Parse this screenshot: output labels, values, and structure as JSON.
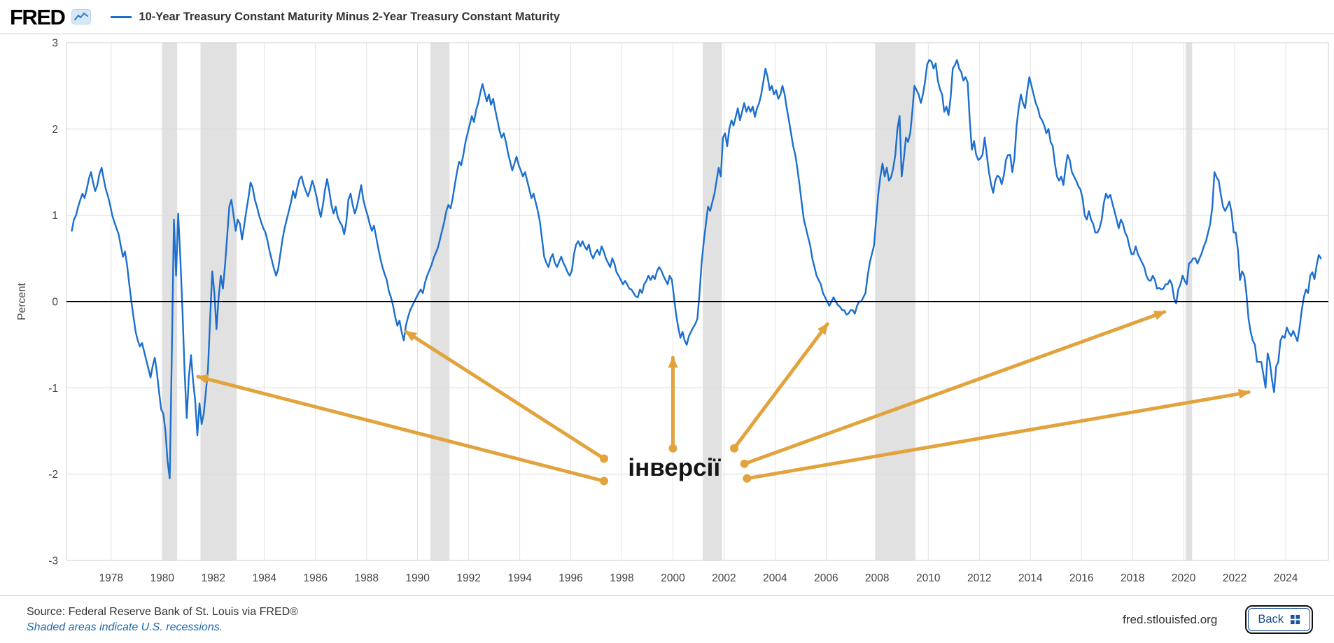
{
  "header": {
    "brand": "FRED",
    "series_title": "10-Year Treasury Constant Maturity Minus 2-Year Treasury Constant Maturity"
  },
  "chart_data": {
    "type": "line",
    "title": "10-Year Treasury Constant Maturity Minus 2-Year Treasury Constant Maturity",
    "ylabel": "Percent",
    "ylim": [
      -3,
      3
    ],
    "yticks": [
      3,
      2,
      1,
      0,
      -1,
      -2,
      -3
    ],
    "xlim": [
      1976.25,
      2025.67
    ],
    "xticks": [
      1978,
      1980,
      1982,
      1984,
      1986,
      1988,
      1990,
      1992,
      1994,
      1996,
      1998,
      2000,
      2002,
      2004,
      2006,
      2008,
      2010,
      2012,
      2014,
      2016,
      2018,
      2020,
      2022,
      2024
    ],
    "line_color": "#1c6fce",
    "recession_color": "#e1e1e1",
    "grid": true,
    "zero_line": true,
    "recessions": [
      [
        1980.0,
        1980.583
      ],
      [
        1981.5,
        1982.917
      ],
      [
        1990.5,
        1991.25
      ],
      [
        2001.167,
        2001.917
      ],
      [
        2007.917,
        2009.5
      ],
      [
        2020.083,
        2020.333
      ]
    ],
    "series": [
      {
        "name": "10-Year Treasury Constant Maturity Minus 2-Year Treasury Constant Maturity",
        "units": "percent",
        "start": "1976-06",
        "frequency": "monthly",
        "values": [
          0.82,
          0.95,
          1.0,
          1.1,
          1.18,
          1.25,
          1.2,
          1.3,
          1.42,
          1.5,
          1.38,
          1.28,
          1.35,
          1.48,
          1.55,
          1.42,
          1.3,
          1.22,
          1.12,
          1.0,
          0.92,
          0.85,
          0.78,
          0.65,
          0.52,
          0.58,
          0.42,
          0.2,
          0.0,
          -0.18,
          -0.35,
          -0.45,
          -0.52,
          -0.48,
          -0.58,
          -0.68,
          -0.78,
          -0.88,
          -0.75,
          -0.65,
          -0.82,
          -1.05,
          -1.25,
          -1.3,
          -1.5,
          -1.85,
          -2.05,
          -0.6,
          0.95,
          0.3,
          1.02,
          0.5,
          -0.1,
          -0.8,
          -1.35,
          -0.88,
          -0.62,
          -0.92,
          -1.15,
          -1.55,
          -1.18,
          -1.42,
          -1.3,
          -1.05,
          -0.78,
          -0.2,
          0.35,
          0.1,
          -0.32,
          0.05,
          0.3,
          0.15,
          0.42,
          0.75,
          1.1,
          1.18,
          1.0,
          0.82,
          0.95,
          0.9,
          0.72,
          0.88,
          1.05,
          1.2,
          1.38,
          1.32,
          1.18,
          1.1,
          1.0,
          0.92,
          0.85,
          0.8,
          0.7,
          0.58,
          0.48,
          0.38,
          0.3,
          0.38,
          0.55,
          0.72,
          0.85,
          0.95,
          1.05,
          1.15,
          1.28,
          1.2,
          1.32,
          1.42,
          1.45,
          1.35,
          1.28,
          1.22,
          1.3,
          1.4,
          1.32,
          1.22,
          1.08,
          0.98,
          1.12,
          1.3,
          1.42,
          1.28,
          1.12,
          1.02,
          1.1,
          0.98,
          0.92,
          0.88,
          0.78,
          0.92,
          1.18,
          1.25,
          1.12,
          1.02,
          1.1,
          1.22,
          1.35,
          1.18,
          1.08,
          1.0,
          0.9,
          0.82,
          0.88,
          0.75,
          0.62,
          0.5,
          0.4,
          0.32,
          0.25,
          0.12,
          0.05,
          -0.05,
          -0.18,
          -0.28,
          -0.22,
          -0.35,
          -0.45,
          -0.28,
          -0.18,
          -0.1,
          -0.05,
          0.0,
          0.05,
          0.1,
          0.14,
          0.1,
          0.22,
          0.3,
          0.36,
          0.42,
          0.5,
          0.56,
          0.62,
          0.72,
          0.82,
          0.92,
          1.05,
          1.12,
          1.08,
          1.2,
          1.35,
          1.5,
          1.62,
          1.58,
          1.7,
          1.85,
          1.95,
          2.05,
          2.15,
          2.08,
          2.22,
          2.3,
          2.42,
          2.52,
          2.42,
          2.32,
          2.4,
          2.28,
          2.35,
          2.22,
          2.1,
          1.98,
          1.9,
          1.95,
          1.85,
          1.72,
          1.62,
          1.52,
          1.6,
          1.68,
          1.58,
          1.52,
          1.45,
          1.5,
          1.4,
          1.3,
          1.2,
          1.25,
          1.15,
          1.05,
          0.92,
          0.72,
          0.52,
          0.45,
          0.4,
          0.5,
          0.55,
          0.45,
          0.4,
          0.46,
          0.52,
          0.45,
          0.4,
          0.34,
          0.3,
          0.36,
          0.55,
          0.66,
          0.7,
          0.64,
          0.7,
          0.64,
          0.6,
          0.66,
          0.55,
          0.5,
          0.56,
          0.6,
          0.54,
          0.64,
          0.58,
          0.5,
          0.45,
          0.4,
          0.5,
          0.44,
          0.34,
          0.3,
          0.25,
          0.2,
          0.24,
          0.2,
          0.15,
          0.14,
          0.1,
          0.06,
          0.05,
          0.14,
          0.1,
          0.2,
          0.24,
          0.3,
          0.25,
          0.3,
          0.26,
          0.35,
          0.4,
          0.36,
          0.3,
          0.25,
          0.2,
          0.3,
          0.25,
          0.05,
          -0.15,
          -0.3,
          -0.42,
          -0.35,
          -0.45,
          -0.5,
          -0.4,
          -0.35,
          -0.3,
          -0.26,
          -0.2,
          0.1,
          0.45,
          0.7,
          0.9,
          1.1,
          1.05,
          1.15,
          1.25,
          1.4,
          1.55,
          1.45,
          1.9,
          1.95,
          1.8,
          2.0,
          2.1,
          2.04,
          2.14,
          2.24,
          2.1,
          2.2,
          2.3,
          2.2,
          2.26,
          2.2,
          2.26,
          2.14,
          2.24,
          2.3,
          2.4,
          2.55,
          2.7,
          2.6,
          2.45,
          2.5,
          2.4,
          2.45,
          2.35,
          2.4,
          2.5,
          2.4,
          2.24,
          2.1,
          1.95,
          1.8,
          1.7,
          1.54,
          1.35,
          1.15,
          0.95,
          0.85,
          0.75,
          0.65,
          0.5,
          0.4,
          0.3,
          0.25,
          0.2,
          0.1,
          0.05,
          0.0,
          -0.05,
          0.0,
          0.05,
          0.0,
          -0.04,
          -0.06,
          -0.1,
          -0.1,
          -0.15,
          -0.14,
          -0.1,
          -0.1,
          -0.14,
          -0.05,
          0.0,
          0.0,
          0.05,
          0.1,
          0.3,
          0.45,
          0.55,
          0.65,
          0.95,
          1.25,
          1.45,
          1.6,
          1.45,
          1.55,
          1.4,
          1.44,
          1.54,
          1.7,
          2.0,
          2.15,
          1.45,
          1.65,
          1.9,
          1.85,
          1.95,
          2.2,
          2.5,
          2.45,
          2.4,
          2.3,
          2.4,
          2.55,
          2.75,
          2.8,
          2.78,
          2.7,
          2.76,
          2.56,
          2.46,
          2.4,
          2.2,
          2.26,
          2.16,
          2.36,
          2.7,
          2.74,
          2.8,
          2.7,
          2.66,
          2.56,
          2.6,
          2.54,
          2.1,
          1.76,
          1.86,
          1.7,
          1.64,
          1.66,
          1.7,
          1.9,
          1.7,
          1.5,
          1.36,
          1.26,
          1.4,
          1.46,
          1.44,
          1.36,
          1.46,
          1.64,
          1.7,
          1.7,
          1.5,
          1.66,
          2.04,
          2.24,
          2.4,
          2.3,
          2.24,
          2.44,
          2.6,
          2.5,
          2.4,
          2.3,
          2.24,
          2.14,
          2.1,
          2.04,
          1.95,
          2.0,
          1.85,
          1.8,
          1.6,
          1.45,
          1.4,
          1.45,
          1.35,
          1.55,
          1.7,
          1.64,
          1.5,
          1.45,
          1.4,
          1.34,
          1.3,
          1.2,
          1.0,
          0.95,
          1.05,
          0.95,
          0.9,
          0.8,
          0.8,
          0.85,
          0.95,
          1.14,
          1.25,
          1.2,
          1.24,
          1.14,
          1.05,
          0.95,
          0.85,
          0.95,
          0.9,
          0.8,
          0.75,
          0.64,
          0.55,
          0.55,
          0.64,
          0.55,
          0.5,
          0.45,
          0.4,
          0.3,
          0.25,
          0.24,
          0.3,
          0.25,
          0.15,
          0.16,
          0.14,
          0.15,
          0.2,
          0.2,
          0.25,
          0.2,
          0.04,
          -0.02,
          0.14,
          0.2,
          0.3,
          0.24,
          0.2,
          0.44,
          0.46,
          0.5,
          0.5,
          0.44,
          0.5,
          0.56,
          0.64,
          0.7,
          0.8,
          0.9,
          1.1,
          1.5,
          1.44,
          1.4,
          1.24,
          1.1,
          1.05,
          1.1,
          1.16,
          1.04,
          0.8,
          0.8,
          0.6,
          0.25,
          0.35,
          0.3,
          0.1,
          -0.2,
          -0.35,
          -0.45,
          -0.5,
          -0.7,
          -0.7,
          -0.7,
          -0.85,
          -1.0,
          -0.6,
          -0.7,
          -0.9,
          -1.05,
          -0.75,
          -0.7,
          -0.45,
          -0.4,
          -0.42,
          -0.3,
          -0.36,
          -0.4,
          -0.34,
          -0.4,
          -0.46,
          -0.3,
          -0.1,
          0.05,
          0.14,
          0.1,
          0.3,
          0.34,
          0.26,
          0.42,
          0.54,
          0.5
        ]
      }
    ],
    "annotation": {
      "label": "інверсії",
      "color": "#e2a33d",
      "label_xy": [
        2000.05,
        -2.02
      ],
      "arrows": [
        {
          "from": [
            1997.3,
            -2.08
          ],
          "to": [
            1981.4,
            -0.87
          ]
        },
        {
          "from": [
            1997.3,
            -1.82
          ],
          "to": [
            1989.55,
            -0.35
          ]
        },
        {
          "from": [
            2000.0,
            -1.7
          ],
          "to": [
            2000.0,
            -0.65
          ]
        },
        {
          "from": [
            2002.4,
            -1.7
          ],
          "to": [
            2006.05,
            -0.26
          ]
        },
        {
          "from": [
            2002.8,
            -1.88
          ],
          "to": [
            2019.25,
            -0.12
          ]
        },
        {
          "from": [
            2002.9,
            -2.05
          ],
          "to": [
            2022.55,
            -1.05
          ]
        }
      ]
    }
  },
  "footer": {
    "source": "Source: Federal Reserve Bank of St. Louis via FRED®",
    "note": "Shaded areas indicate U.S. recessions.",
    "site": "fred.stlouisfed.org",
    "back_label": "Back"
  }
}
